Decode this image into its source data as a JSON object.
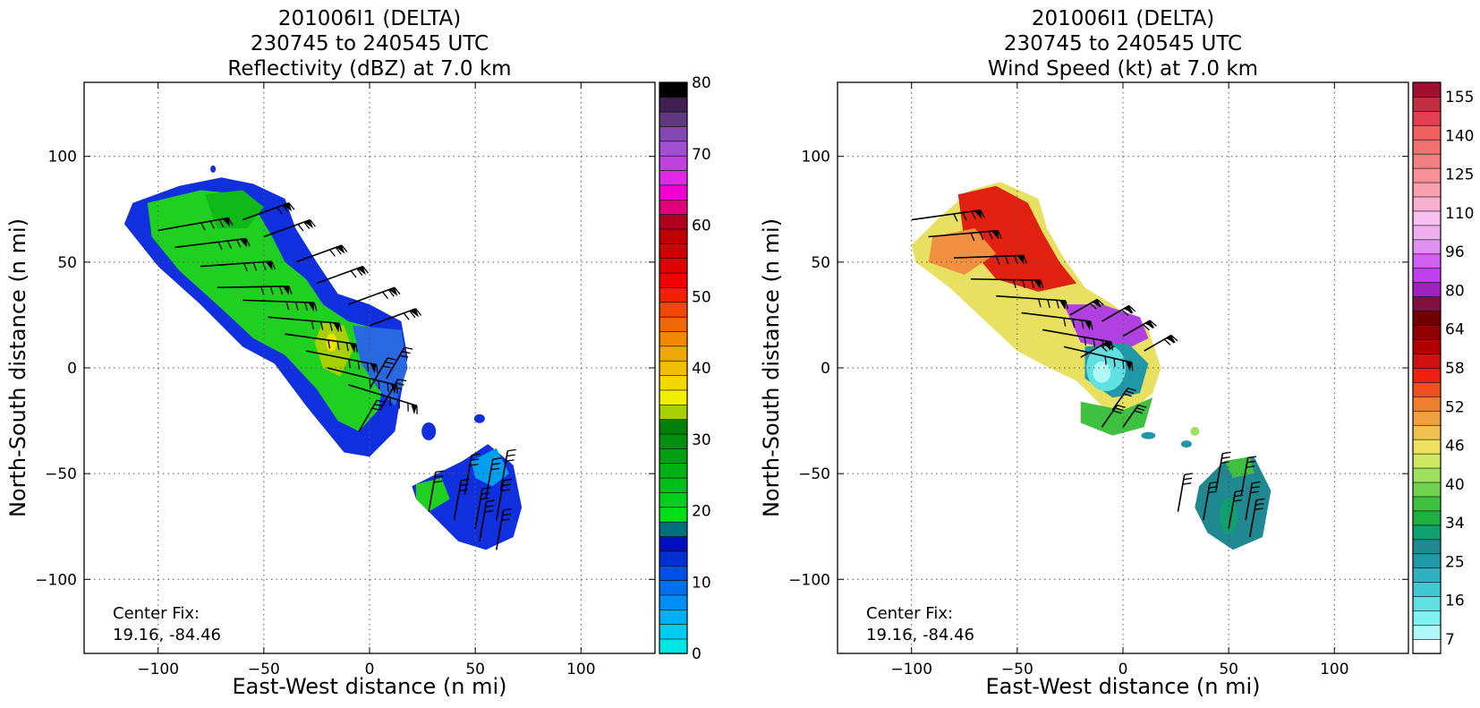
{
  "chart_data": [
    {
      "type": "heatmap",
      "title_lines": [
        "201006I1 (DELTA)",
        "230745 to 240545 UTC",
        "Reflectivity (dBZ) at 7.0 km"
      ],
      "xlabel": "East-West distance (n mi)",
      "ylabel": "North-South distance (n mi)",
      "xlim": [
        -135,
        135
      ],
      "ylim": [
        -135,
        135
      ],
      "x_ticks": [
        "−100",
        "−50",
        "0",
        "50",
        "100"
      ],
      "y_ticks": [
        "100",
        "50",
        "0",
        "−50",
        "−100"
      ],
      "grid": true,
      "annotation": [
        "Center Fix:",
        "19.16, -84.46"
      ],
      "colorbar": {
        "range": [
          0,
          80
        ],
        "ticks": [
          "80",
          "70",
          "60",
          "50",
          "40",
          "30",
          "20",
          "10",
          "0"
        ],
        "colors": [
          "#00e6e6",
          "#00ccf0",
          "#00b0f5",
          "#0090f5",
          "#0070f0",
          "#0050e6",
          "#0030d0",
          "#0010c0",
          "#00707a",
          "#00e01a",
          "#00d01a",
          "#00c018",
          "#00b015",
          "#00a012",
          "#00900e",
          "#00800a",
          "#a8d000",
          "#f0f000",
          "#f0d800",
          "#f0c000",
          "#f0a800",
          "#f08800",
          "#f06800",
          "#f04800",
          "#f02000",
          "#f00000",
          "#e00000",
          "#d00000",
          "#c00000",
          "#b00020",
          "#e0007a",
          "#f000d0",
          "#e028e6",
          "#c040e0",
          "#a050d0",
          "#8048b0",
          "#603880",
          "#402050",
          "#000000"
        ]
      }
    },
    {
      "type": "heatmap",
      "title_lines": [
        "201006I1 (DELTA)",
        "230745 to 240545 UTC",
        "Wind Speed (kt) at 7.0 km"
      ],
      "xlabel": "East-West distance (n mi)",
      "ylabel": "North-South distance (n mi)",
      "xlim": [
        -135,
        135
      ],
      "ylim": [
        -135,
        135
      ],
      "x_ticks": [
        "−100",
        "−50",
        "0",
        "50",
        "100"
      ],
      "y_ticks": [
        "100",
        "50",
        "0",
        "−50",
        "−100"
      ],
      "grid": true,
      "annotation": [
        "Center Fix:",
        "19.16, -84.46"
      ],
      "colorbar": {
        "ticks": [
          "155",
          "140",
          "125",
          "110",
          "96",
          "80",
          "64",
          "58",
          "52",
          "46",
          "40",
          "34",
          "25",
          "16",
          "7"
        ],
        "colors": [
          "#ffffff",
          "#b0f8f8",
          "#80f0f0",
          "#60e0e0",
          "#40c8d0",
          "#30b0c0",
          "#2098a8",
          "#208890",
          "#10a070",
          "#20b040",
          "#40c040",
          "#70d050",
          "#a0e060",
          "#d0e860",
          "#f0e060",
          "#f0c050",
          "#f0a040",
          "#f08030",
          "#f05020",
          "#f02010",
          "#d01010",
          "#b00000",
          "#900000",
          "#700000",
          "#801040",
          "#a020c0",
          "#c040f0",
          "#d060f0",
          "#e090f0",
          "#f0b0f0",
          "#f8c0f0",
          "#f8b0d0",
          "#f8a0b0",
          "#f89098",
          "#f08080",
          "#f07070",
          "#f06060",
          "#e04050",
          "#c03040",
          "#a01030"
        ]
      }
    }
  ]
}
